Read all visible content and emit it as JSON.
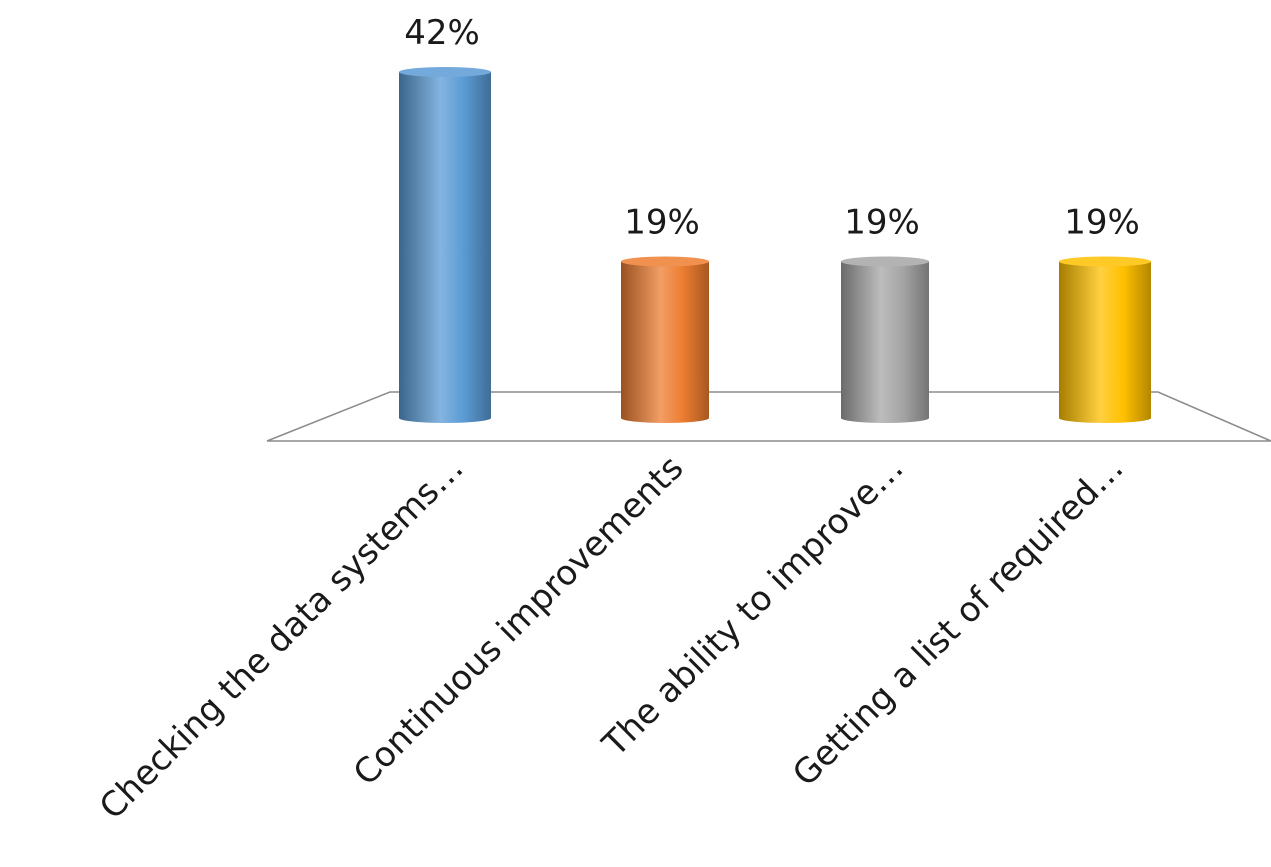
{
  "chart_data": {
    "type": "bar",
    "style": "3d-cylinder",
    "categories": [
      "Checking the data systems…",
      "Continuous improvements",
      "The ability to improve…",
      "Getting a list of required…"
    ],
    "values": [
      42,
      19,
      19,
      19
    ],
    "value_labels": [
      "42%",
      "19%",
      "19%",
      "19%"
    ],
    "unit": "%",
    "ylim": [
      0,
      42
    ],
    "grid": false,
    "legend": "none",
    "colors": [
      "#5b9bd5",
      "#ed7d31",
      "#a5a5a5",
      "#ffc000"
    ]
  }
}
